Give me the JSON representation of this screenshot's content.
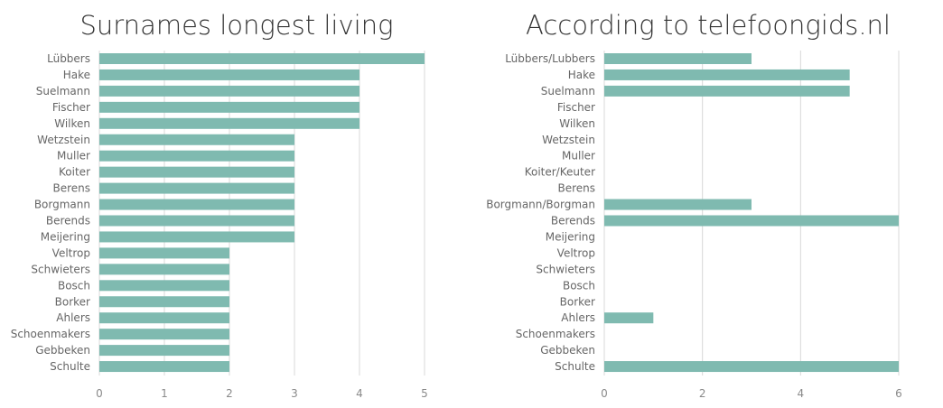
{
  "chart_data": [
    {
      "type": "bar",
      "orientation": "horizontal",
      "title": "Surnames longest living",
      "xlabel": "",
      "ylabel": "",
      "categories": [
        "Lübbers",
        "Hake",
        "Suelmann",
        "Fischer",
        "Wilken",
        "Wetzstein",
        "Muller",
        "Koiter",
        "Berens",
        "Borgmann",
        "Berends",
        "Meijering",
        "Veltrop",
        "Schwieters",
        "Bosch",
        "Borker",
        "Ahlers",
        "Schoenmakers",
        "Gebbeken",
        "Schulte"
      ],
      "values": [
        5,
        4,
        4,
        4,
        4,
        3,
        3,
        3,
        3,
        3,
        3,
        3,
        2,
        2,
        2,
        2,
        2,
        2,
        2,
        2
      ],
      "xlim": [
        0,
        5
      ],
      "xticks": [
        "0",
        "1",
        "2",
        "3",
        "4",
        "5"
      ],
      "grid": true,
      "bar_color": "#7fbab0"
    },
    {
      "type": "bar",
      "orientation": "horizontal",
      "title": "According to telefoongids.nl",
      "xlabel": "",
      "ylabel": "",
      "categories": [
        "Lübbers/Lubbers",
        "Hake",
        "Suelmann",
        "Fischer",
        "Wilken",
        "Wetzstein",
        "Muller",
        "Koiter/Keuter",
        "Berens",
        "Borgmann/Borgman",
        "Berends",
        "Meijering",
        "Veltrop",
        "Schwieters",
        "Bosch",
        "Borker",
        "Ahlers",
        "Schoenmakers",
        "Gebbeken",
        "Schulte"
      ],
      "values": [
        3,
        5,
        5,
        0,
        0,
        0,
        0,
        0,
        0,
        3,
        6,
        0,
        0,
        0,
        0,
        0,
        1,
        0,
        0,
        6
      ],
      "xlim": [
        0,
        6
      ],
      "xticks": [
        "0",
        "2",
        "4",
        "6"
      ],
      "grid": true,
      "bar_color": "#7fbab0"
    }
  ]
}
